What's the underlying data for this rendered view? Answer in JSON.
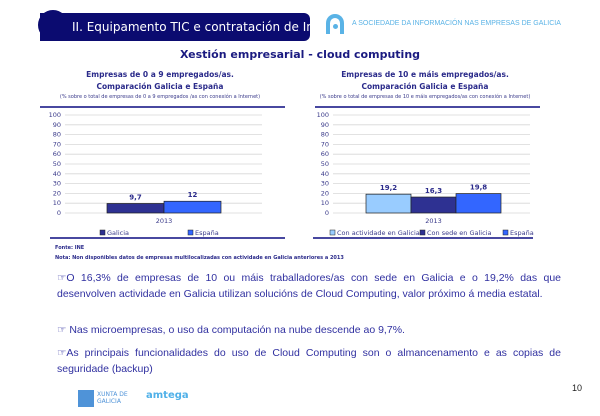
{
  "header": {
    "section_title": "II. Equipamento TIC e contratación de Internet",
    "tagline": "A SOCIEDADE DA INFORMACIÓN NAS EMPRESAS DE GALICIA"
  },
  "main_title": "Xestión empresarial - cloud computing",
  "chart_data": [
    {
      "type": "bar",
      "title": "Empresas de 0 a 9 empregados/as.",
      "subtitle": "Comparación Galicia e España",
      "note": "(% sobre o total de empresas de 0 a 9 empregados /as con conexión a Internet)",
      "categories": [
        "2013"
      ],
      "ylim": [
        0,
        100
      ],
      "yticks": [
        0,
        10,
        20,
        30,
        40,
        50,
        60,
        70,
        80,
        90,
        100
      ],
      "grid": true,
      "legend": "bottom",
      "series": [
        {
          "name": "Galicia",
          "values": [
            9.7
          ],
          "label": "9,7",
          "color": "#2e3192"
        },
        {
          "name": "España",
          "values": [
            12
          ],
          "label": "12",
          "color": "#3366ff"
        }
      ]
    },
    {
      "type": "bar",
      "title": "Empresas  de 10 e máis empregados/as.",
      "subtitle": "Comparación Galicia e España",
      "note": "(% sobre o total de empresas de 10 e máis empregados/as con conexión a Internet)",
      "categories": [
        "2013"
      ],
      "ylim": [
        0,
        100
      ],
      "yticks": [
        0,
        10,
        20,
        30,
        40,
        50,
        60,
        70,
        80,
        90,
        100
      ],
      "grid": true,
      "legend": "bottom",
      "series": [
        {
          "name": "Con actividade en Galicia",
          "values": [
            19.2
          ],
          "label": "19,2",
          "color": "#99ccff"
        },
        {
          "name": "Con sede en Galicia",
          "values": [
            16.3
          ],
          "label": "16,3",
          "color": "#2e3192"
        },
        {
          "name": "España",
          "values": [
            19.8
          ],
          "label": "19,8",
          "color": "#3366ff"
        }
      ]
    }
  ],
  "source": "Fonte: INE",
  "footnote": "Nota: Non dispoñibles datos de empresas multilocalizadas con actividade en Galicia anteriores a 2013",
  "paragraphs": [
    "☞O 16,3% de empresas de 10 ou máis traballadores/as con sede en Galicia e o 19,2% das que desenvolven actividade en Galicia utilizan solucións de Cloud Computing, valor próximo á media estatal.",
    "☞ Nas microempresas, o uso da computación na nube descende ao 9,7%.",
    "☞As principais funcionalidades do uso de Cloud Computing son o almancenamento e as copias de seguridade (backup)"
  ],
  "footer": {
    "page_number": "10",
    "logo1": "XUNTA DE GALICIA",
    "logo2": "amtega"
  }
}
